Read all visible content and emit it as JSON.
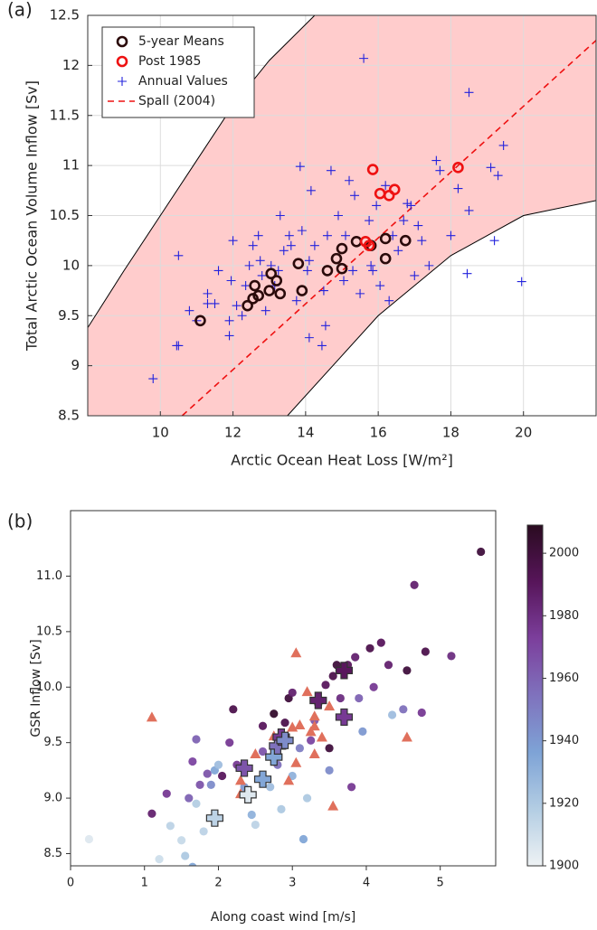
{
  "chart_data": [
    {
      "type": "scatter",
      "panel_label": "(a)",
      "xlabel": "Arctic Ocean Heat Loss [W/m²]",
      "ylabel": "Total Arctic Ocean Volume Inflow [Sv]",
      "xlim": [
        8,
        22
      ],
      "ylim": [
        8.5,
        12.5
      ],
      "xticks": [
        10,
        12,
        14,
        16,
        18,
        20
      ],
      "yticks": [
        8.5,
        9,
        9.5,
        10,
        10.5,
        11,
        11.5,
        12,
        12.5
      ],
      "grid": true,
      "legend": "upper left",
      "band": {
        "color": "#ffcccc",
        "upper": {
          "x": [
            8,
            9,
            10,
            11,
            12,
            13,
            14.25
          ],
          "y": [
            9.38,
            9.95,
            10.5,
            11.05,
            11.6,
            12.05,
            12.5
          ]
        },
        "lower": {
          "x": [
            13.5,
            15,
            16,
            17,
            18,
            19,
            20,
            22
          ],
          "y": [
            8.5,
            9.1,
            9.5,
            9.8,
            10.1,
            10.3,
            10.5,
            10.65
          ]
        }
      },
      "series": [
        {
          "name": "5-year Means",
          "color": "#2a0a0a",
          "marker": "circle",
          "x": [
            11.1,
            12.4,
            12.55,
            12.6,
            12.7,
            13.0,
            13.05,
            13.2,
            13.3,
            13.8,
            13.9,
            14.6,
            14.85,
            15.0,
            15.0,
            15.4,
            15.8,
            16.2,
            16.2,
            16.75
          ],
          "values": [
            9.45,
            9.6,
            9.67,
            9.8,
            9.7,
            9.75,
            9.92,
            9.85,
            9.72,
            10.02,
            9.75,
            9.95,
            10.07,
            10.17,
            9.97,
            10.24,
            10.2,
            10.27,
            10.07,
            10.25
          ]
        },
        {
          "name": "Post 1985",
          "color": "#ee1111",
          "marker": "circle",
          "x": [
            15.65,
            15.75,
            15.85,
            16.05,
            16.3,
            16.45,
            18.2
          ],
          "values": [
            10.24,
            10.2,
            10.96,
            10.72,
            10.7,
            10.76,
            10.98
          ]
        },
        {
          "name": "Annual Values",
          "color": "#2222dd",
          "marker": "plus",
          "x": [
            9.8,
            10.5,
            10.45,
            10.5,
            10.8,
            11.0,
            11.3,
            11.3,
            11.5,
            11.6,
            11.9,
            11.9,
            12.0,
            11.95,
            12.1,
            12.25,
            12.35,
            12.45,
            12.55,
            12.7,
            12.75,
            12.8,
            13.05,
            13.15,
            13.25,
            13.3,
            13.4,
            13.55,
            13.6,
            13.75,
            13.85,
            13.9,
            14.05,
            14.1,
            14.15,
            14.25,
            14.45,
            14.5,
            14.55,
            14.6,
            14.7,
            14.9,
            15.05,
            15.1,
            15.2,
            15.3,
            15.35,
            15.5,
            15.6,
            15.75,
            15.85,
            15.95,
            16.05,
            16.2,
            16.3,
            16.4,
            16.55,
            16.7,
            16.9,
            17.0,
            17.2,
            17.4,
            17.6,
            17.7,
            18.0,
            18.2,
            18.45,
            18.5,
            18.5,
            19.1,
            19.2,
            19.3,
            19.45,
            19.95,
            14.1,
            12.9,
            15.8,
            16.8,
            17.1
          ],
          "values": [
            8.87,
            9.2,
            9.2,
            10.1,
            9.55,
            9.45,
            9.62,
            9.72,
            9.62,
            9.95,
            9.3,
            9.45,
            10.25,
            9.85,
            9.6,
            9.5,
            9.8,
            10.0,
            10.2,
            10.3,
            10.05,
            9.9,
            10.0,
            9.8,
            9.95,
            10.5,
            10.15,
            10.3,
            10.2,
            9.65,
            10.99,
            10.35,
            9.95,
            10.05,
            10.75,
            10.2,
            9.2,
            9.75,
            9.4,
            10.3,
            10.95,
            10.5,
            9.85,
            10.3,
            10.85,
            9.95,
            10.7,
            9.72,
            12.07,
            10.45,
            9.95,
            10.6,
            9.8,
            10.8,
            9.65,
            10.3,
            10.15,
            10.45,
            10.6,
            9.9,
            10.25,
            10.0,
            11.05,
            10.95,
            10.3,
            10.77,
            9.92,
            11.73,
            10.55,
            10.98,
            10.25,
            10.9,
            11.2,
            9.84,
            9.28,
            9.55,
            10.0,
            10.62,
            10.4
          ]
        },
        {
          "name": "Spall (2004)",
          "color": "#ee1111",
          "marker": "dashed-line",
          "x": [
            10.6,
            22
          ],
          "values": [
            8.5,
            12.25
          ]
        }
      ]
    },
    {
      "type": "scatter",
      "panel_label": "(b)",
      "xlabel": "Along coast wind [m/s]",
      "ylabel": "GSR Inflow [Sv]",
      "xlim": [
        0,
        5.75
      ],
      "ylim": [
        8.39,
        11.59
      ],
      "xticks": [
        0,
        1,
        2,
        3,
        4,
        5
      ],
      "yticks": [
        {
          "value": 8.5,
          "label": "8.5"
        },
        {
          "value": 9,
          "label": "9.0"
        },
        9.5,
        {
          "value": 10,
          "label": "10.0"
        },
        10.5,
        {
          "value": 11,
          "label": "11.0"
        }
      ],
      "grid": false,
      "colorbar": {
        "clim": [
          1900,
          2009
        ],
        "ticks": [
          1900,
          1920,
          1940,
          1960,
          1980,
          2000
        ],
        "colormap": [
          "#eef2f4",
          "#b3cde3",
          "#7ea3d6",
          "#7f72bd",
          "#7c3f9c",
          "#57155a",
          "#2a0b20"
        ]
      },
      "series": [
        {
          "marker": "dot",
          "x": [
            0.25,
            1.2,
            1.35,
            1.5,
            1.55,
            1.65,
            1.7,
            1.1,
            1.3,
            1.6,
            1.65,
            1.7,
            1.75,
            1.85,
            1.9,
            1.95,
            2.0,
            2.05,
            2.15,
            2.2,
            2.25,
            2.35,
            2.45,
            2.5,
            2.6,
            2.7,
            2.75,
            2.8,
            2.85,
            2.9,
            2.95,
            3.0,
            3.1,
            3.15,
            3.2,
            3.3,
            3.35,
            3.45,
            3.5,
            3.55,
            3.6,
            3.65,
            3.75,
            3.8,
            3.85,
            3.9,
            3.95,
            4.05,
            4.1,
            4.2,
            4.3,
            4.35,
            4.5,
            4.55,
            4.65,
            4.75,
            4.8,
            5.15,
            5.55,
            3.5,
            2.6,
            3.25,
            3.0,
            1.8
          ],
          "values": [
            8.63,
            8.45,
            8.75,
            8.62,
            8.48,
            8.38,
            8.95,
            8.86,
            9.04,
            9.0,
            9.33,
            9.53,
            9.12,
            9.22,
            9.12,
            9.25,
            9.3,
            9.2,
            9.5,
            9.8,
            9.3,
            9.1,
            8.85,
            8.76,
            9.65,
            9.1,
            9.76,
            9.3,
            8.9,
            9.68,
            9.9,
            9.95,
            9.45,
            8.63,
            9.0,
            9.7,
            9.85,
            10.02,
            9.45,
            10.1,
            10.2,
            9.9,
            10.2,
            9.1,
            10.27,
            9.9,
            9.6,
            10.35,
            10.0,
            10.4,
            10.2,
            9.75,
            9.8,
            10.15,
            10.92,
            9.77,
            10.32,
            10.28,
            11.22,
            9.25,
            9.42,
            9.52,
            9.2,
            8.7
          ],
          "colors": [
            1905,
            1910,
            1915,
            1912,
            1920,
            1935,
            1918,
            1985,
            1975,
            1960,
            1970,
            1960,
            1965,
            1965,
            1945,
            1935,
            1925,
            1990,
            1975,
            1995,
            1975,
            1940,
            1930,
            1915,
            1990,
            1925,
            2005,
            1955,
            1920,
            1995,
            2000,
            1985,
            1950,
            1935,
            1920,
            1965,
            2000,
            1990,
            2000,
            1995,
            2000,
            1980,
            1990,
            1975,
            1985,
            1960,
            1940,
            1995,
            1975,
            1990,
            1985,
            1925,
            1955,
            2000,
            1985,
            1975,
            1995,
            1980,
            2000,
            1945,
            1965,
            1970,
            1930,
            1915
          ]
        },
        {
          "marker": "triangle",
          "color": "#e0705c",
          "x": [
            1.1,
            2.3,
            2.3,
            2.5,
            2.75,
            2.95,
            3.0,
            3.05,
            3.05,
            3.1,
            3.2,
            3.25,
            3.3,
            3.3,
            3.4,
            3.5,
            3.55,
            4.55,
            3.3
          ],
          "values": [
            9.73,
            9.16,
            9.04,
            9.4,
            9.56,
            9.16,
            9.64,
            9.32,
            10.31,
            9.66,
            9.96,
            9.6,
            9.65,
            9.74,
            9.55,
            9.83,
            8.93,
            9.55,
            9.4
          ]
        },
        {
          "marker": "cross",
          "x": [
            1.95,
            2.4,
            2.6,
            2.35,
            2.75,
            2.8,
            2.85,
            2.9,
            3.35,
            3.7,
            3.7
          ],
          "values": [
            8.82,
            9.03,
            9.17,
            9.27,
            9.37,
            9.47,
            9.55,
            9.52,
            9.88,
            9.73,
            10.15
          ],
          "colors": [
            1915,
            1905,
            1935,
            1965,
            1935,
            1955,
            1975,
            1945,
            1985,
            1975,
            1990
          ]
        }
      ]
    }
  ]
}
